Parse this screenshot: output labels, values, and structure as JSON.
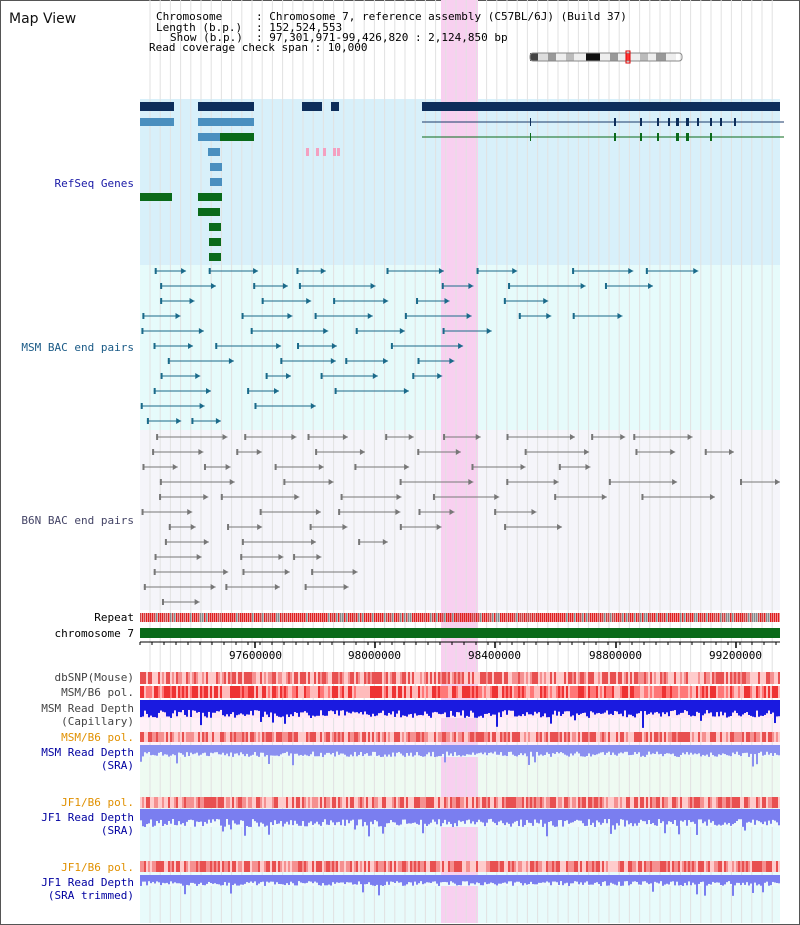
{
  "view_title": "Map View",
  "info": {
    "chromosome_key": "Chromosome",
    "chromosome_val": ": Chromosome 7, reference assembly (C57BL/6J) (Build 37)",
    "length_key": "Length (b.p.)",
    "length_val": ": 152,524,553",
    "show_key": "Show (b.p.)",
    "show_val": ": 97,301,971-99,426,820 : 2,124,850 bp",
    "coverage_line": "Read coverage check span : 10,000"
  },
  "tracks": {
    "refseq": "RefSeq Genes",
    "msm_bac": "MSM BAC end pairs",
    "b6n_bac": "B6N BAC end pairs",
    "repeat": "Repeat",
    "chromosome": "chromosome 7",
    "dbsnp": "dbSNP(Mouse)",
    "msm_b6_pol_1": "MSM/B6 pol.",
    "msm_read_depth_cap_1": "MSM Read Depth",
    "msm_read_depth_cap_2": "(Capillary)",
    "msm_b6_pol_2": "MSM/B6 pol.",
    "msm_read_depth_sra_1": "MSM Read Depth",
    "msm_read_depth_sra_2": "(SRA)",
    "jf1_b6_pol_1": "JF1/B6 pol.",
    "jf1_read_depth_sra_1": "JF1 Read Depth",
    "jf1_read_depth_sra_2": "(SRA)",
    "jf1_b6_pol_2": "JF1/B6 pol.",
    "jf1_read_depth_trim_1": "JF1 Read Depth",
    "jf1_read_depth_trim_2": "(SRA trimmed)"
  },
  "axis_ticks": [
    "97600000",
    "98000000",
    "98400000",
    "98800000",
    "99200000"
  ],
  "colors": {
    "refseq_bg": "#d8f0fa",
    "msm_bac_bg": "#e6fbfb",
    "b6n_bac_bg": "#f5f5fa",
    "highlight": "#f8d0f0",
    "refseq_label": "#1a1aa6",
    "msm_label": "#1a5a86",
    "b6n_label": "#444466",
    "orange_label": "#e09000",
    "blue_label": "#0000a0"
  }
}
